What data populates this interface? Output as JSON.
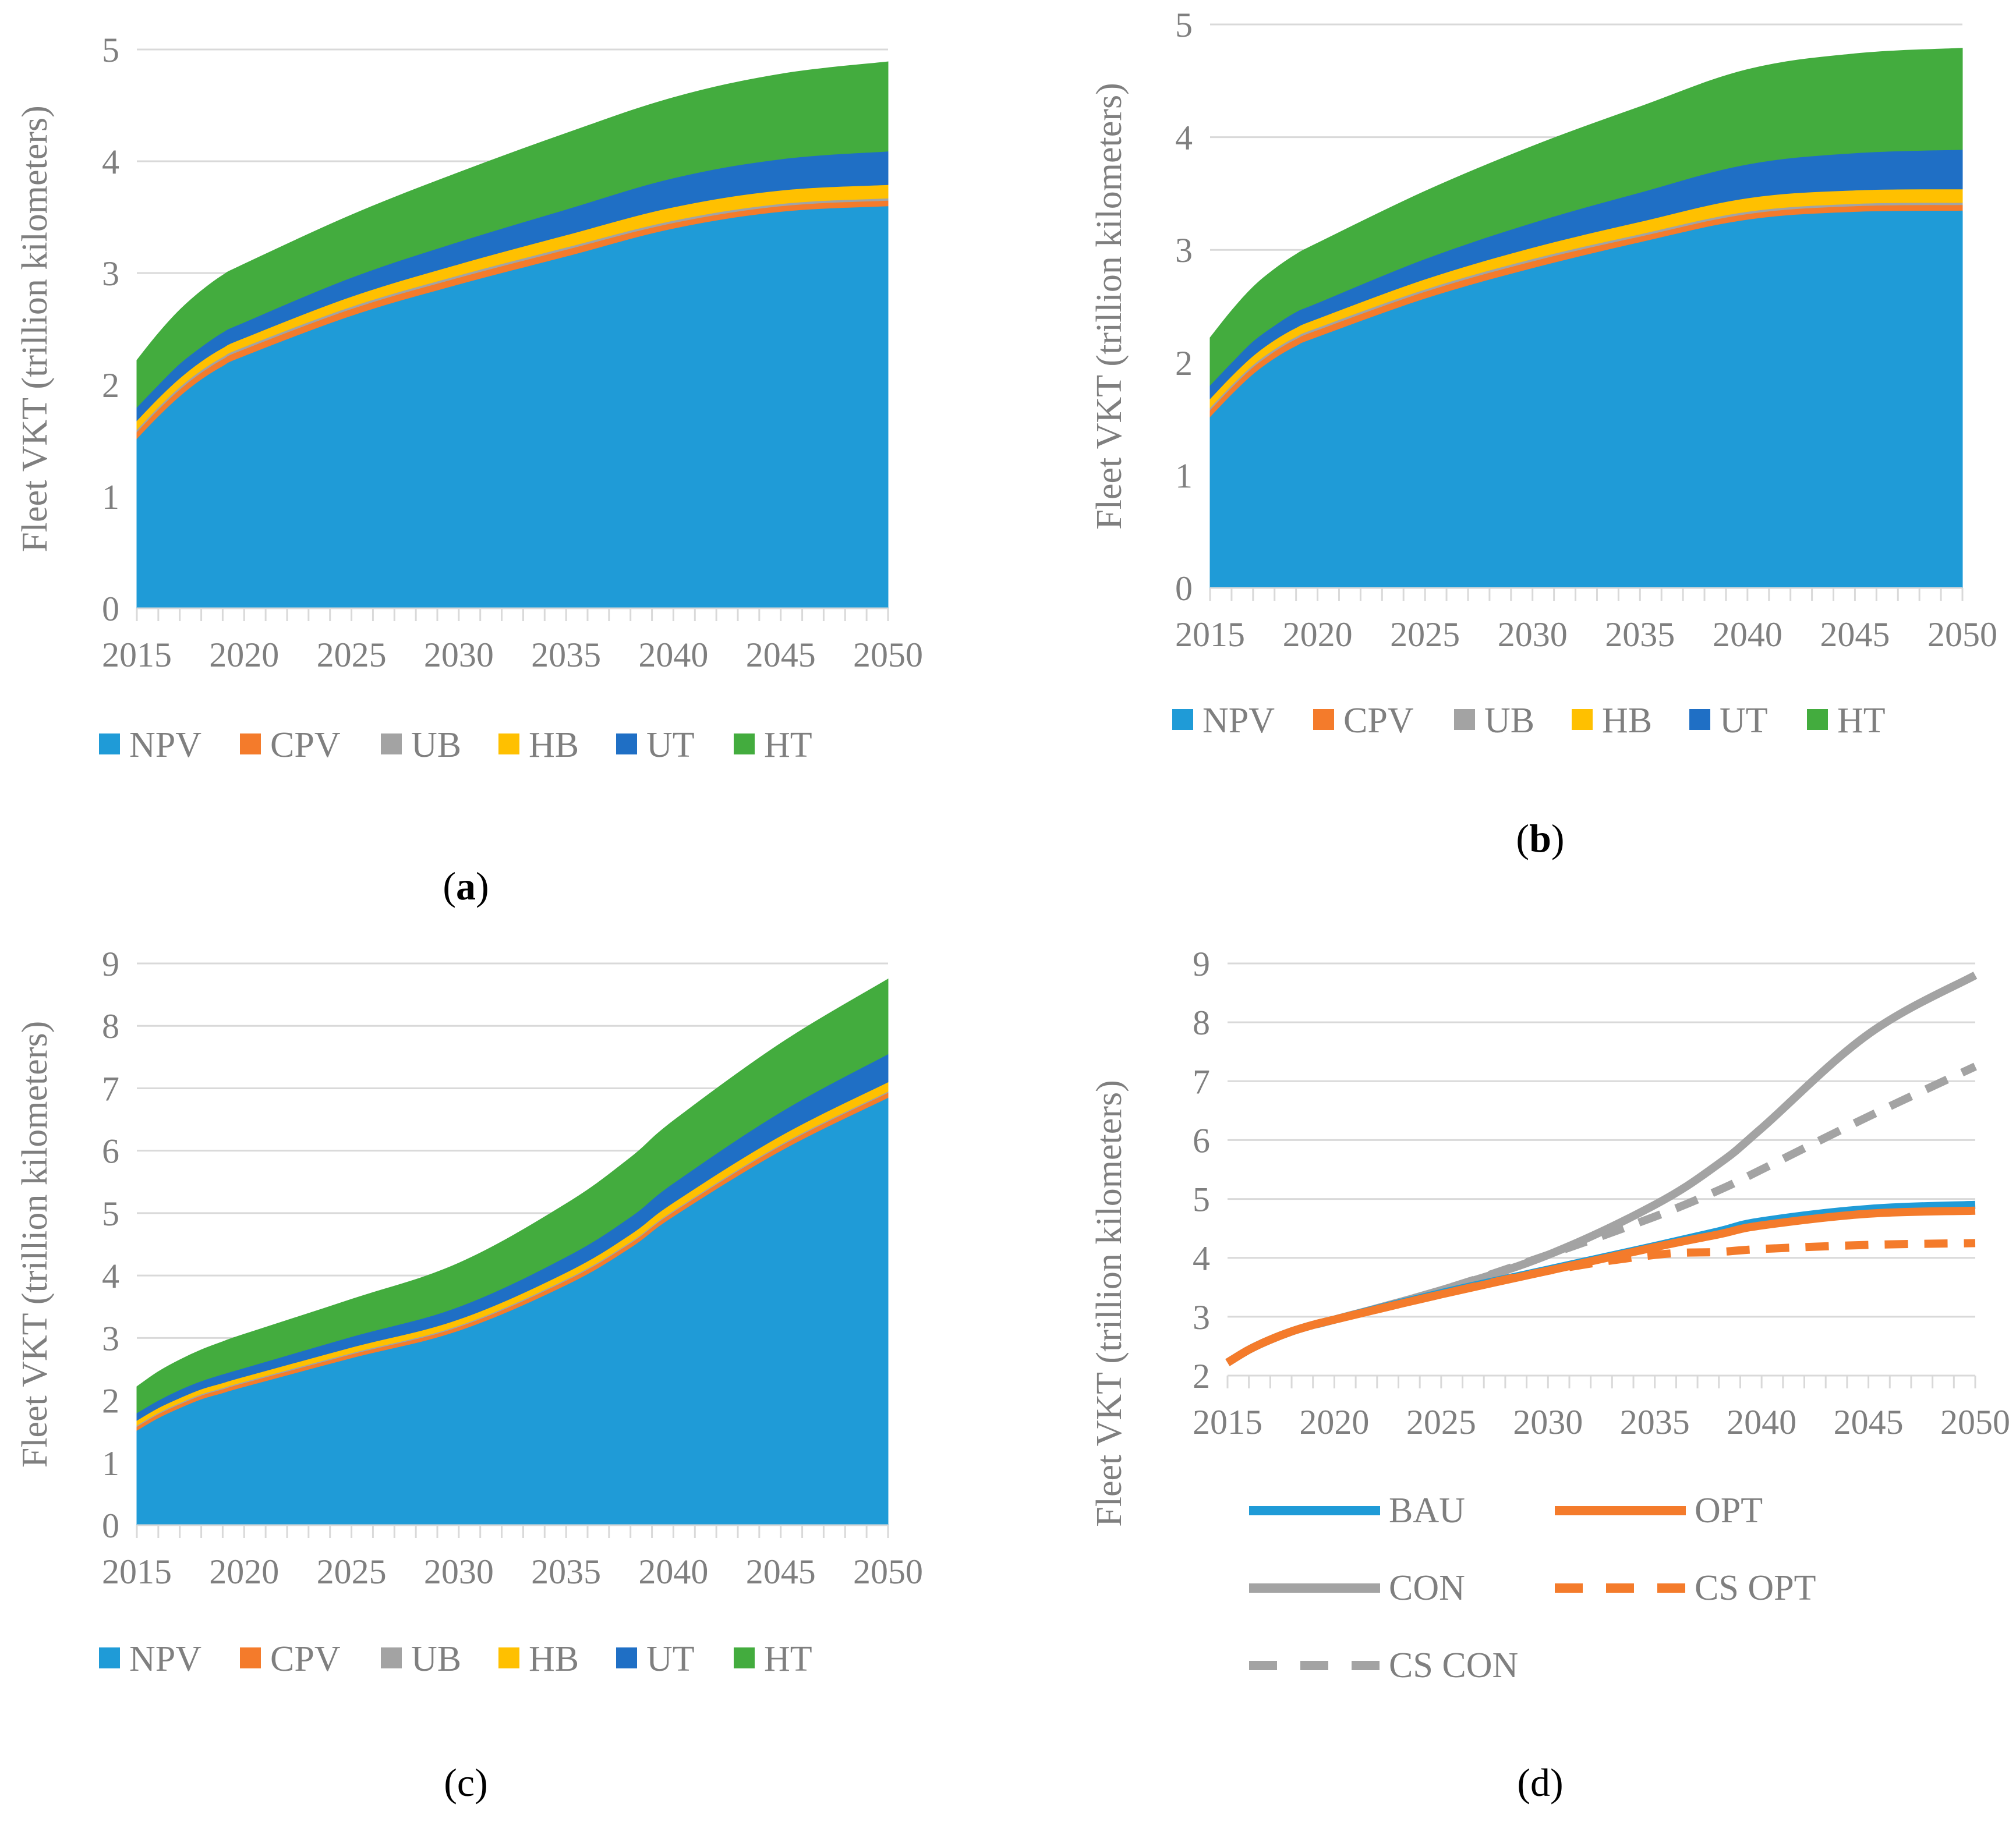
{
  "figure": {
    "panel_labels": [
      {
        "open": "(",
        "letter": "a",
        "close": ")"
      },
      {
        "open": "(",
        "letter": "b",
        "close": ")"
      },
      {
        "open": "(",
        "letter": "c",
        "close": ")"
      },
      {
        "open": "(",
        "letter": "d",
        "close": ")"
      }
    ]
  },
  "colors": {
    "NPV": "#1f9bd7",
    "CPV": "#f47b2b",
    "UB": "#a3a3a3",
    "HB": "#ffc000",
    "UT": "#1f6fc5",
    "HT": "#43ac3e",
    "BAU": "#1f9bd7",
    "OPT": "#f47b2b",
    "CON": "#a3a3a3",
    "CS_OPT": "#f47b2b",
    "CS_CON": "#a3a3a3",
    "grid": "#d9d9d9",
    "text": "#7f7f7f"
  },
  "chart_data": [
    {
      "id": "a",
      "type": "area",
      "stacked": true,
      "title": "",
      "xlabel": "",
      "ylabel": "Fleet VKT (trillion kilometers)",
      "xlim": [
        2015,
        2050
      ],
      "ylim": [
        0,
        5
      ],
      "yticks": [
        0,
        1,
        2,
        3,
        4,
        5
      ],
      "xticks": [
        2015,
        2020,
        2025,
        2030,
        2035,
        2040,
        2045,
        2050
      ],
      "legend_position": "bottom",
      "x": [
        2015,
        2016,
        2017,
        2018,
        2019,
        2020,
        2025,
        2030,
        2035,
        2040,
        2045,
        2050
      ],
      "series": [
        {
          "name": "NPV",
          "values": [
            1.52,
            1.72,
            1.9,
            2.05,
            2.17,
            2.26,
            2.62,
            2.9,
            3.15,
            3.4,
            3.55,
            3.6
          ]
        },
        {
          "name": "CPV",
          "values": [
            0.06,
            0.06,
            0.06,
            0.06,
            0.06,
            0.06,
            0.06,
            0.06,
            0.06,
            0.05,
            0.05,
            0.05
          ]
        },
        {
          "name": "UB",
          "values": [
            0.02,
            0.02,
            0.02,
            0.02,
            0.02,
            0.02,
            0.02,
            0.02,
            0.02,
            0.02,
            0.02,
            0.02
          ]
        },
        {
          "name": "HB",
          "values": [
            0.08,
            0.08,
            0.08,
            0.08,
            0.08,
            0.08,
            0.09,
            0.1,
            0.11,
            0.12,
            0.12,
            0.12
          ]
        },
        {
          "name": "UT",
          "values": [
            0.12,
            0.12,
            0.13,
            0.13,
            0.14,
            0.14,
            0.17,
            0.2,
            0.23,
            0.26,
            0.28,
            0.3
          ]
        },
        {
          "name": "HT",
          "values": [
            0.42,
            0.46,
            0.48,
            0.5,
            0.51,
            0.52,
            0.56,
            0.62,
            0.68,
            0.72,
            0.76,
            0.8
          ]
        }
      ]
    },
    {
      "id": "b",
      "type": "area",
      "stacked": true,
      "title": "",
      "xlabel": "",
      "ylabel": "Fleet VKT (trillion kilometers)",
      "xlim": [
        2015,
        2050
      ],
      "ylim": [
        0,
        5
      ],
      "yticks": [
        0,
        1,
        2,
        3,
        4,
        5
      ],
      "xticks": [
        2015,
        2020,
        2025,
        2030,
        2035,
        2040,
        2045,
        2050
      ],
      "legend_position": "bottom",
      "x": [
        2015,
        2016,
        2017,
        2018,
        2019,
        2020,
        2025,
        2030,
        2035,
        2040,
        2045,
        2050
      ],
      "series": [
        {
          "name": "NPV",
          "values": [
            1.52,
            1.72,
            1.9,
            2.04,
            2.15,
            2.23,
            2.57,
            2.84,
            3.07,
            3.27,
            3.34,
            3.35
          ]
        },
        {
          "name": "CPV",
          "values": [
            0.06,
            0.06,
            0.06,
            0.06,
            0.06,
            0.06,
            0.06,
            0.06,
            0.05,
            0.05,
            0.05,
            0.05
          ]
        },
        {
          "name": "UB",
          "values": [
            0.02,
            0.02,
            0.02,
            0.02,
            0.02,
            0.02,
            0.02,
            0.02,
            0.02,
            0.02,
            0.02,
            0.02
          ]
        },
        {
          "name": "HB",
          "values": [
            0.08,
            0.08,
            0.08,
            0.08,
            0.08,
            0.08,
            0.09,
            0.1,
            0.11,
            0.12,
            0.12,
            0.12
          ]
        },
        {
          "name": "UT",
          "values": [
            0.12,
            0.12,
            0.13,
            0.13,
            0.14,
            0.14,
            0.18,
            0.22,
            0.26,
            0.3,
            0.33,
            0.35
          ]
        },
        {
          "name": "HT",
          "values": [
            0.42,
            0.46,
            0.48,
            0.5,
            0.51,
            0.53,
            0.6,
            0.68,
            0.76,
            0.84,
            0.88,
            0.9
          ]
        }
      ]
    },
    {
      "id": "c",
      "type": "area",
      "stacked": true,
      "title": "",
      "xlabel": "",
      "ylabel": "Fleet VKT (trillion kilometers)",
      "xlim": [
        2015,
        2050
      ],
      "ylim": [
        0,
        9
      ],
      "yticks": [
        0,
        1,
        2,
        3,
        4,
        5,
        6,
        7,
        8,
        9
      ],
      "xticks": [
        2015,
        2020,
        2025,
        2030,
        2035,
        2040,
        2045,
        2050
      ],
      "legend_position": "bottom",
      "x": [
        2015,
        2016,
        2017,
        2018,
        2019,
        2020,
        2025,
        2030,
        2035,
        2038,
        2040,
        2045,
        2050
      ],
      "series": [
        {
          "name": "NPV",
          "values": [
            1.52,
            1.72,
            1.88,
            2.02,
            2.12,
            2.22,
            2.68,
            3.12,
            3.85,
            4.45,
            4.95,
            6.0,
            6.85
          ]
        },
        {
          "name": "CPV",
          "values": [
            0.06,
            0.06,
            0.06,
            0.06,
            0.06,
            0.06,
            0.06,
            0.06,
            0.07,
            0.07,
            0.07,
            0.08,
            0.08
          ]
        },
        {
          "name": "UB",
          "values": [
            0.02,
            0.02,
            0.02,
            0.02,
            0.02,
            0.02,
            0.02,
            0.02,
            0.02,
            0.02,
            0.02,
            0.02,
            0.02
          ]
        },
        {
          "name": "HB",
          "values": [
            0.08,
            0.08,
            0.08,
            0.08,
            0.08,
            0.08,
            0.09,
            0.1,
            0.11,
            0.12,
            0.13,
            0.14,
            0.15
          ]
        },
        {
          "name": "UT",
          "values": [
            0.12,
            0.12,
            0.13,
            0.13,
            0.14,
            0.14,
            0.17,
            0.2,
            0.25,
            0.28,
            0.31,
            0.38,
            0.45
          ]
        },
        {
          "name": "HT",
          "values": [
            0.42,
            0.46,
            0.48,
            0.5,
            0.52,
            0.54,
            0.6,
            0.7,
            0.85,
            0.95,
            1.0,
            1.1,
            1.2
          ]
        }
      ]
    },
    {
      "id": "d",
      "type": "line",
      "title": "",
      "xlabel": "",
      "ylabel": "Fleet VKT (trillion kilometers)",
      "xlim": [
        2015,
        2050
      ],
      "ylim": [
        2,
        9
      ],
      "yticks": [
        2,
        3,
        4,
        5,
        6,
        7,
        8,
        9
      ],
      "xticks": [
        2015,
        2020,
        2025,
        2030,
        2035,
        2040,
        2045,
        2050
      ],
      "legend_position": "bottom",
      "x": [
        2015,
        2016,
        2017,
        2018,
        2019,
        2020,
        2025,
        2030,
        2035,
        2038,
        2040,
        2045,
        2050
      ],
      "series": [
        {
          "name": "BAU",
          "style": "solid",
          "values": [
            2.22,
            2.44,
            2.61,
            2.75,
            2.86,
            2.95,
            3.4,
            3.8,
            4.2,
            4.45,
            4.62,
            4.83,
            4.9
          ]
        },
        {
          "name": "OPT",
          "style": "solid",
          "values": [
            2.22,
            2.44,
            2.61,
            2.75,
            2.86,
            2.95,
            3.38,
            3.78,
            4.18,
            4.4,
            4.55,
            4.75,
            4.8
          ]
        },
        {
          "name": "CON",
          "style": "solid",
          "values": [
            2.22,
            2.44,
            2.61,
            2.75,
            2.86,
            2.95,
            3.45,
            4.05,
            4.9,
            5.6,
            6.2,
            7.8,
            8.8
          ]
        },
        {
          "name": "CS OPT",
          "style": "dashed",
          "values": [
            2.22,
            2.44,
            2.61,
            2.75,
            2.86,
            2.95,
            3.38,
            3.78,
            4.05,
            4.1,
            4.15,
            4.22,
            4.25
          ]
        },
        {
          "name": "CS CON",
          "style": "dashed",
          "values": [
            2.22,
            2.44,
            2.61,
            2.75,
            2.86,
            2.95,
            3.45,
            4.05,
            4.7,
            5.15,
            5.5,
            6.4,
            7.25
          ]
        }
      ]
    }
  ]
}
